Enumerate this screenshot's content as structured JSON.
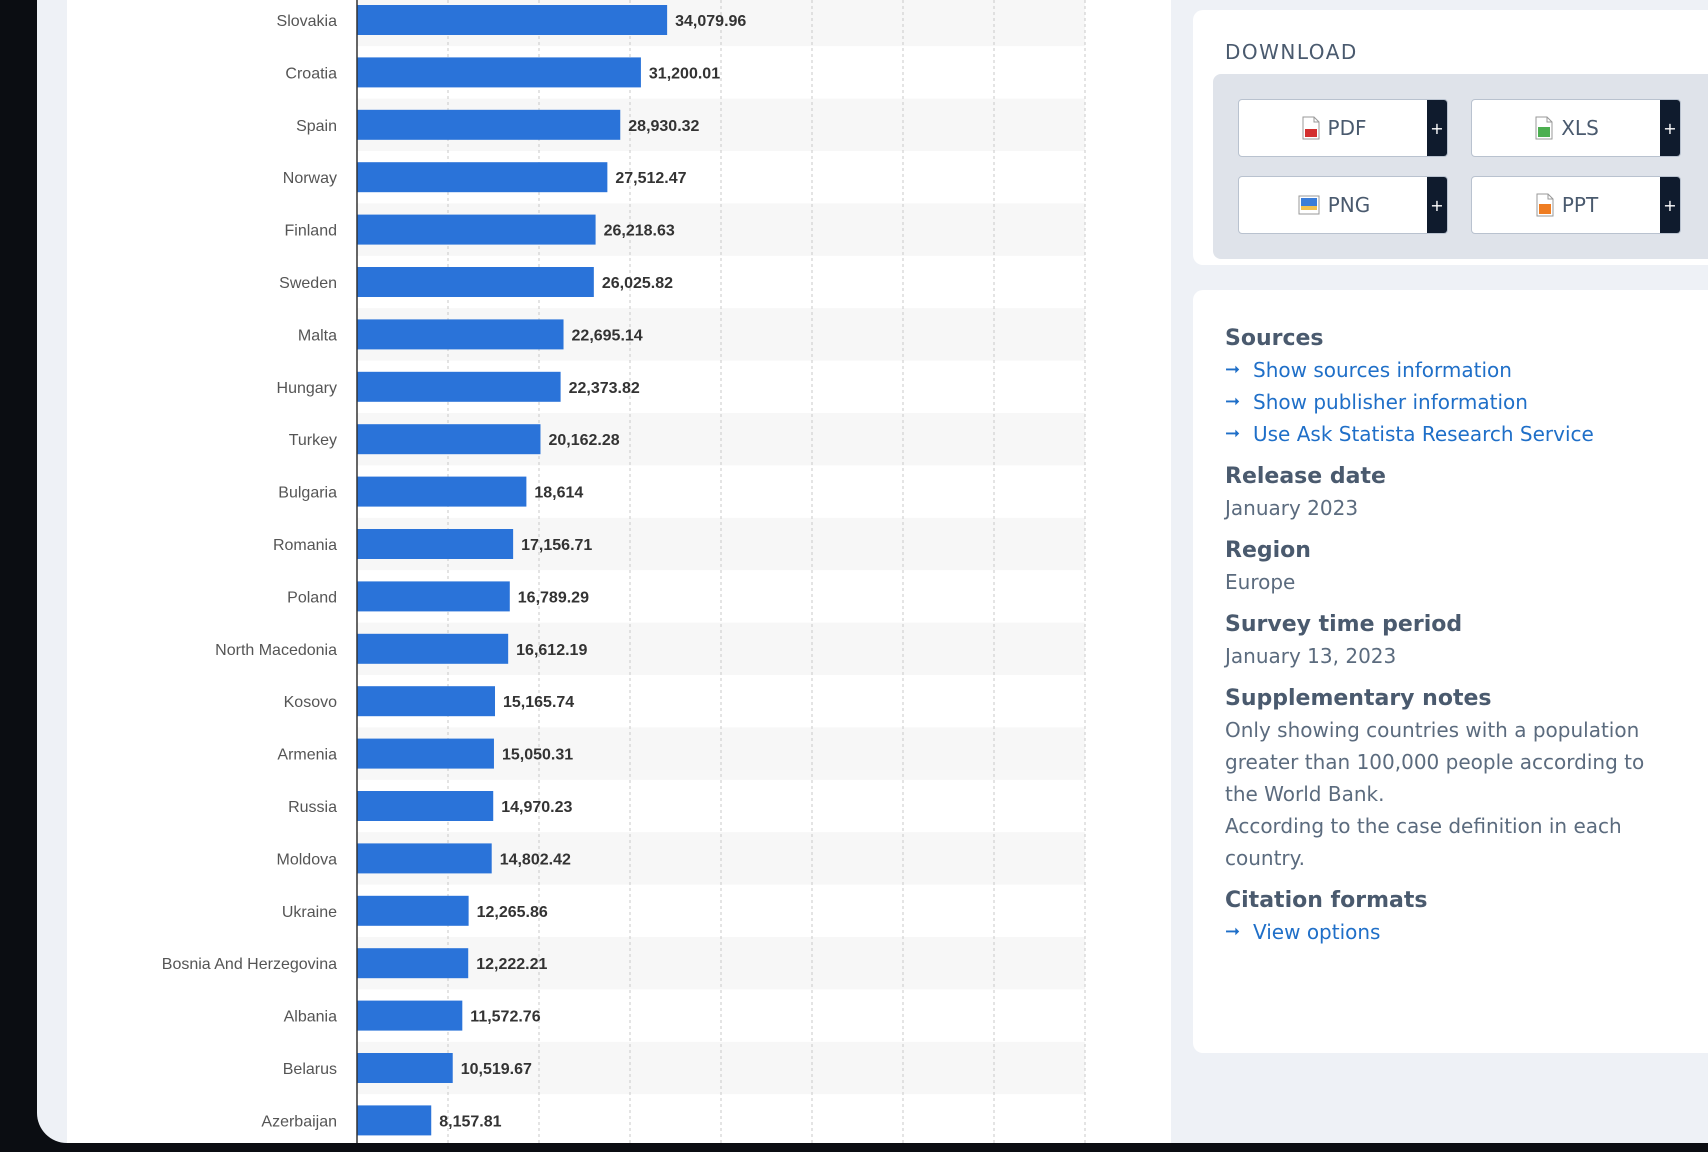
{
  "chart_data": {
    "type": "bar",
    "orientation": "horizontal",
    "categories": [
      "Slovakia",
      "Croatia",
      "Spain",
      "Norway",
      "Finland",
      "Sweden",
      "Malta",
      "Hungary",
      "Turkey",
      "Bulgaria",
      "Romania",
      "Poland",
      "North Macedonia",
      "Kosovo",
      "Armenia",
      "Russia",
      "Moldova",
      "Ukraine",
      "Bosnia And Herzegovina",
      "Albania",
      "Belarus",
      "Azerbaijan"
    ],
    "values": [
      34079.96,
      31200.01,
      28930.32,
      27512.47,
      26218.63,
      26025.82,
      22695.14,
      22373.82,
      20162.28,
      18614,
      17156.71,
      16789.29,
      16612.19,
      15165.74,
      15050.31,
      14970.23,
      14802.42,
      12265.86,
      12222.21,
      11572.76,
      10519.67,
      8157.81
    ],
    "value_labels": [
      "34,079.96",
      "31,200.01",
      "28,930.32",
      "27,512.47",
      "26,218.63",
      "26,025.82",
      "22,695.14",
      "22,373.82",
      "20,162.28",
      "18,614",
      "17,156.71",
      "16,789.29",
      "16,612.19",
      "15,165.74",
      "15,050.31",
      "14,970.23",
      "14,802.42",
      "12,265.86",
      "12,222.21",
      "11,572.76",
      "10,519.67",
      "8,157.81"
    ],
    "xlim": [
      0,
      80000
    ],
    "grid": true,
    "bar_color": "#2a73d9"
  },
  "download": {
    "title": "DOWNLOAD",
    "buttons": [
      {
        "label": "PDF",
        "icon": "pdf-file-icon",
        "color": "#d32f2f"
      },
      {
        "label": "XLS",
        "icon": "xls-file-icon",
        "color": "#4caf50"
      },
      {
        "label": "PNG",
        "icon": "png-file-icon",
        "color": "#3b7dd8"
      },
      {
        "label": "PPT",
        "icon": "ppt-file-icon",
        "color": "#ef7d22"
      }
    ],
    "plus": "+"
  },
  "info": {
    "sources_heading": "Sources",
    "links": [
      "Show sources information",
      "Show publisher information",
      "Use Ask Statista Research Service"
    ],
    "release_heading": "Release date",
    "release_value": "January 2023",
    "region_heading": "Region",
    "region_value": "Europe",
    "survey_heading": "Survey time period",
    "survey_value": "January 13, 2023",
    "notes_heading": "Supplementary notes",
    "notes_1": "Only showing countries with a population greater than 100,000 people according to the World Bank.",
    "notes_2": "According to the case definition in each country.",
    "citation_heading": "Citation formats",
    "citation_link": "View options"
  },
  "colors": {
    "link": "#1f6fc8",
    "heading": "#4a5a6e",
    "plus_button": "#0f1b2d"
  }
}
